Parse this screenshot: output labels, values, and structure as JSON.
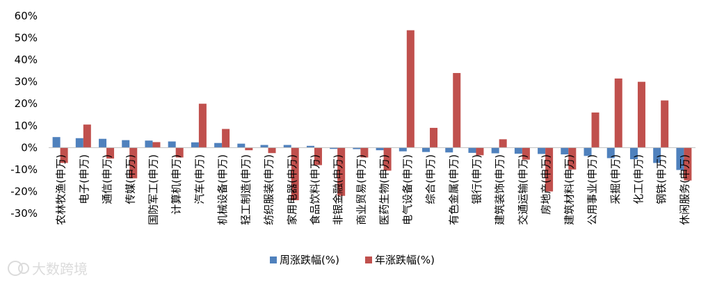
{
  "watermark": "大数跨境",
  "colors": {
    "weekly": "#4F81BD",
    "yearly": "#C0504D",
    "axis": "#000000",
    "gridline": "#d9d9d9"
  },
  "chart_data": {
    "type": "bar",
    "title": "",
    "xlabel": "",
    "ylabel": "",
    "ylim": [
      -30,
      60
    ],
    "y_ticks": [
      60,
      50,
      40,
      30,
      20,
      10,
      0,
      -10,
      -20,
      -30
    ],
    "y_tick_labels": [
      "60%",
      "50%",
      "40%",
      "30%",
      "20%",
      "10%",
      "0%",
      "-10%",
      "-20%",
      "-30%"
    ],
    "grid": false,
    "legend_position": "bottom",
    "categories": [
      "农林牧渔(申万)",
      "电子(申万)",
      "通信(申万)",
      "传媒(申万)",
      "国防军工(申万)",
      "计算机(申万)",
      "汽车(申万)",
      "机械设备(申万)",
      "轻工制造(申万)",
      "纺织服装(申万)",
      "家用电器(申万)",
      "食品饮料(申万)",
      "非银金融(申万)",
      "商业贸易(申万)",
      "医药生物(申万)",
      "电气设备(申万)",
      "综合(申万)",
      "有色金属(申万)",
      "银行(申万)",
      "建筑装饰(申万)",
      "交通运输(申万)",
      "房地产(申万)",
      "建筑材料(申万)",
      "公用事业(申万)",
      "采掘(申万)",
      "化工(申万)",
      "钢铁(申万)",
      "休闲服务(申万)"
    ],
    "series": [
      {
        "name": "周涨跌幅(%)",
        "values": [
          4.8,
          4.3,
          4.0,
          3.4,
          3.2,
          2.8,
          2.4,
          2.1,
          1.8,
          1.2,
          1.2,
          0.8,
          -0.6,
          -0.7,
          -1.2,
          -1.7,
          -2.0,
          -2.2,
          -2.4,
          -2.6,
          -2.8,
          -2.9,
          -3.1,
          -3.8,
          -4.8,
          -5.3,
          -7.0,
          -10.2
        ]
      },
      {
        "name": "年涨跌幅(%)",
        "values": [
          -7.0,
          10.5,
          -5.0,
          -14.0,
          2.5,
          -4.5,
          20.0,
          8.5,
          -1.2,
          -2.5,
          -24.0,
          -8.0,
          -22.0,
          -4.5,
          -10.5,
          53.5,
          9.0,
          34.0,
          -3.5,
          3.8,
          -5.5,
          -20.0,
          -10.0,
          16.0,
          31.5,
          30.0,
          21.5,
          -15.0
        ]
      }
    ]
  }
}
